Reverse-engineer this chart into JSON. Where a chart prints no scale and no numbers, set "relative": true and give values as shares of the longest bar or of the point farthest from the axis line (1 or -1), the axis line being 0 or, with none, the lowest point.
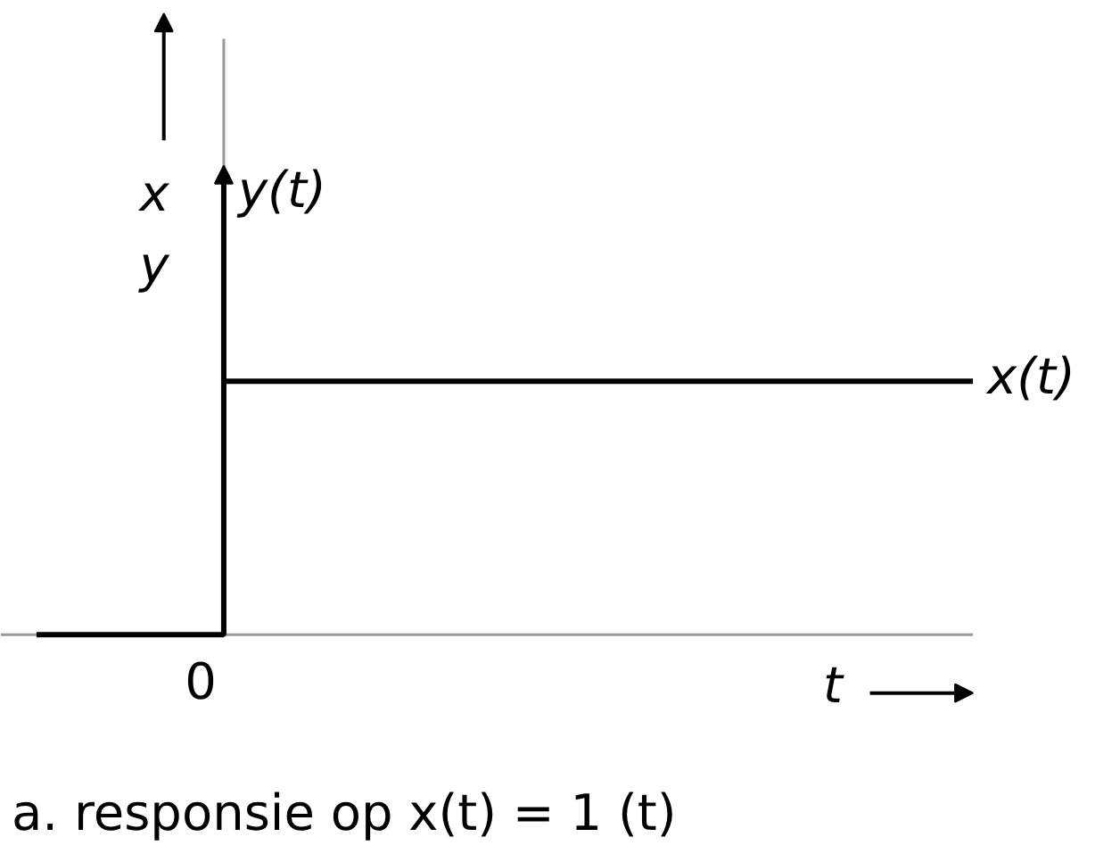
{
  "chart_data": {
    "type": "step",
    "relative": true,
    "title": "a. responsie op x(t) = 1 (t)",
    "xlabel": "t",
    "ylabel": "y(t)",
    "annotations": [
      "x",
      "y",
      {
        "text": "0",
        "y": 0
      }
    ],
    "categories": [
      null,
      null,
      null,
      null,
      null,
      null
    ],
    "series": [
      {
        "name": "x(t)",
        "color": "#000000",
        "values": [
          0,
          1,
          1,
          1,
          1,
          1
        ]
      }
    ]
  }
}
